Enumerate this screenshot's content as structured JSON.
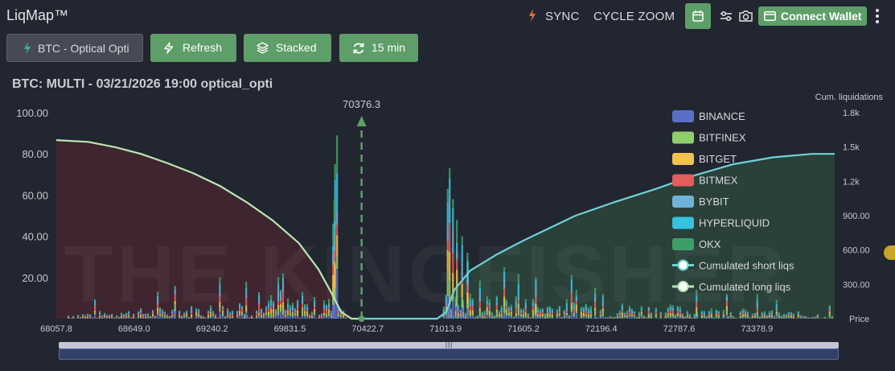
{
  "header": {
    "app_title": "LiqMap™",
    "sync_label": "SYNC",
    "cycle_zoom_label": "CYCLE ZOOM",
    "connect_wallet_label": "Connect Wallet"
  },
  "toolbar": {
    "symbol_label": "BTC - Optical Opti",
    "refresh_label": "Refresh",
    "stacked_label": "Stacked",
    "interval_label": "15 min"
  },
  "chart_title": "BTC: MULTI - 03/21/2026 19:00 optical_opti",
  "watermark": "THE KINGFISHER",
  "colors": {
    "accent_green": "#5e9e68",
    "short_line": "#6fd3d6",
    "long_line": "#b9e6b4",
    "short_area": "#2d4a3c",
    "long_area": "#4a2630"
  },
  "chart_data": {
    "type": "bar",
    "stacked": true,
    "xlabel": "Price",
    "y2label": "Cum. liquidations",
    "x_ticks": [
      "68057.8",
      "68649.0",
      "69240.2",
      "69831.5",
      "70422.7",
      "71013.9",
      "71605.2",
      "72196.4",
      "72787.6",
      "73378.9"
    ],
    "x_range": [
      68057.8,
      73969.0
    ],
    "y_ticks": [
      "20.00",
      "40.00",
      "60.00",
      "80.00",
      "100.00"
    ],
    "ylim": [
      0,
      100
    ],
    "y2_ticks": [
      "300.00",
      "600.00",
      "900.00",
      "1.2k",
      "1.5k",
      "1.8k"
    ],
    "y2lim": [
      0,
      1800
    ],
    "current_price": {
      "value": 70376.3,
      "label": "70376.3"
    },
    "legend_position": "right",
    "legend": [
      {
        "name": "BINANCE",
        "color": "#5b6fc7"
      },
      {
        "name": "BITFINEX",
        "color": "#8fce6a"
      },
      {
        "name": "BITGET",
        "color": "#f2c14e"
      },
      {
        "name": "BITMEX",
        "color": "#e35d5d"
      },
      {
        "name": "BYBIT",
        "color": "#6fb3d8"
      },
      {
        "name": "HYPERLIQUID",
        "color": "#35c3e0"
      },
      {
        "name": "OKX",
        "color": "#3d9e6a"
      },
      {
        "name": "Cumulated short liqs",
        "color": "#6fd3d6",
        "marker": "line"
      },
      {
        "name": "Cumulated long liqs",
        "color": "#b9e6b4",
        "marker": "line"
      }
    ],
    "spikes": [
      {
        "price": 70190,
        "total": 89
      },
      {
        "price": 70175,
        "total": 75
      },
      {
        "price": 70170,
        "total": 58
      },
      {
        "price": 70160,
        "total": 46
      },
      {
        "price": 71045,
        "total": 73
      },
      {
        "price": 71030,
        "total": 63
      },
      {
        "price": 71070,
        "total": 58
      },
      {
        "price": 71100,
        "total": 48
      },
      {
        "price": 71140,
        "total": 40
      },
      {
        "price": 71180,
        "total": 32
      },
      {
        "price": 69780,
        "total": 22
      },
      {
        "price": 69500,
        "total": 18
      },
      {
        "price": 69300,
        "total": 20
      },
      {
        "price": 68960,
        "total": 16
      },
      {
        "price": 71460,
        "total": 25
      },
      {
        "price": 71700,
        "total": 20
      },
      {
        "price": 72150,
        "total": 15
      },
      {
        "price": 72920,
        "total": 14
      },
      {
        "price": 73150,
        "total": 12
      }
    ],
    "cumulated_long": [
      [
        68057.8,
        1560
      ],
      [
        68300,
        1545
      ],
      [
        68500,
        1500
      ],
      [
        68700,
        1440
      ],
      [
        68900,
        1360
      ],
      [
        69100,
        1270
      ],
      [
        69300,
        1160
      ],
      [
        69500,
        1020
      ],
      [
        69700,
        860
      ],
      [
        69900,
        660
      ],
      [
        70050,
        430
      ],
      [
        70150,
        220
      ],
      [
        70220,
        60
      ],
      [
        70300,
        0
      ],
      [
        70376.3,
        0
      ]
    ],
    "cumulated_short": [
      [
        70376.3,
        0
      ],
      [
        70950,
        0
      ],
      [
        71020,
        60
      ],
      [
        71080,
        250
      ],
      [
        71200,
        420
      ],
      [
        71400,
        560
      ],
      [
        71600,
        680
      ],
      [
        71800,
        790
      ],
      [
        72000,
        900
      ],
      [
        72300,
        1020
      ],
      [
        72600,
        1130
      ],
      [
        72900,
        1250
      ],
      [
        73200,
        1350
      ],
      [
        73500,
        1410
      ],
      [
        73800,
        1440
      ],
      [
        73969,
        1440
      ]
    ]
  }
}
